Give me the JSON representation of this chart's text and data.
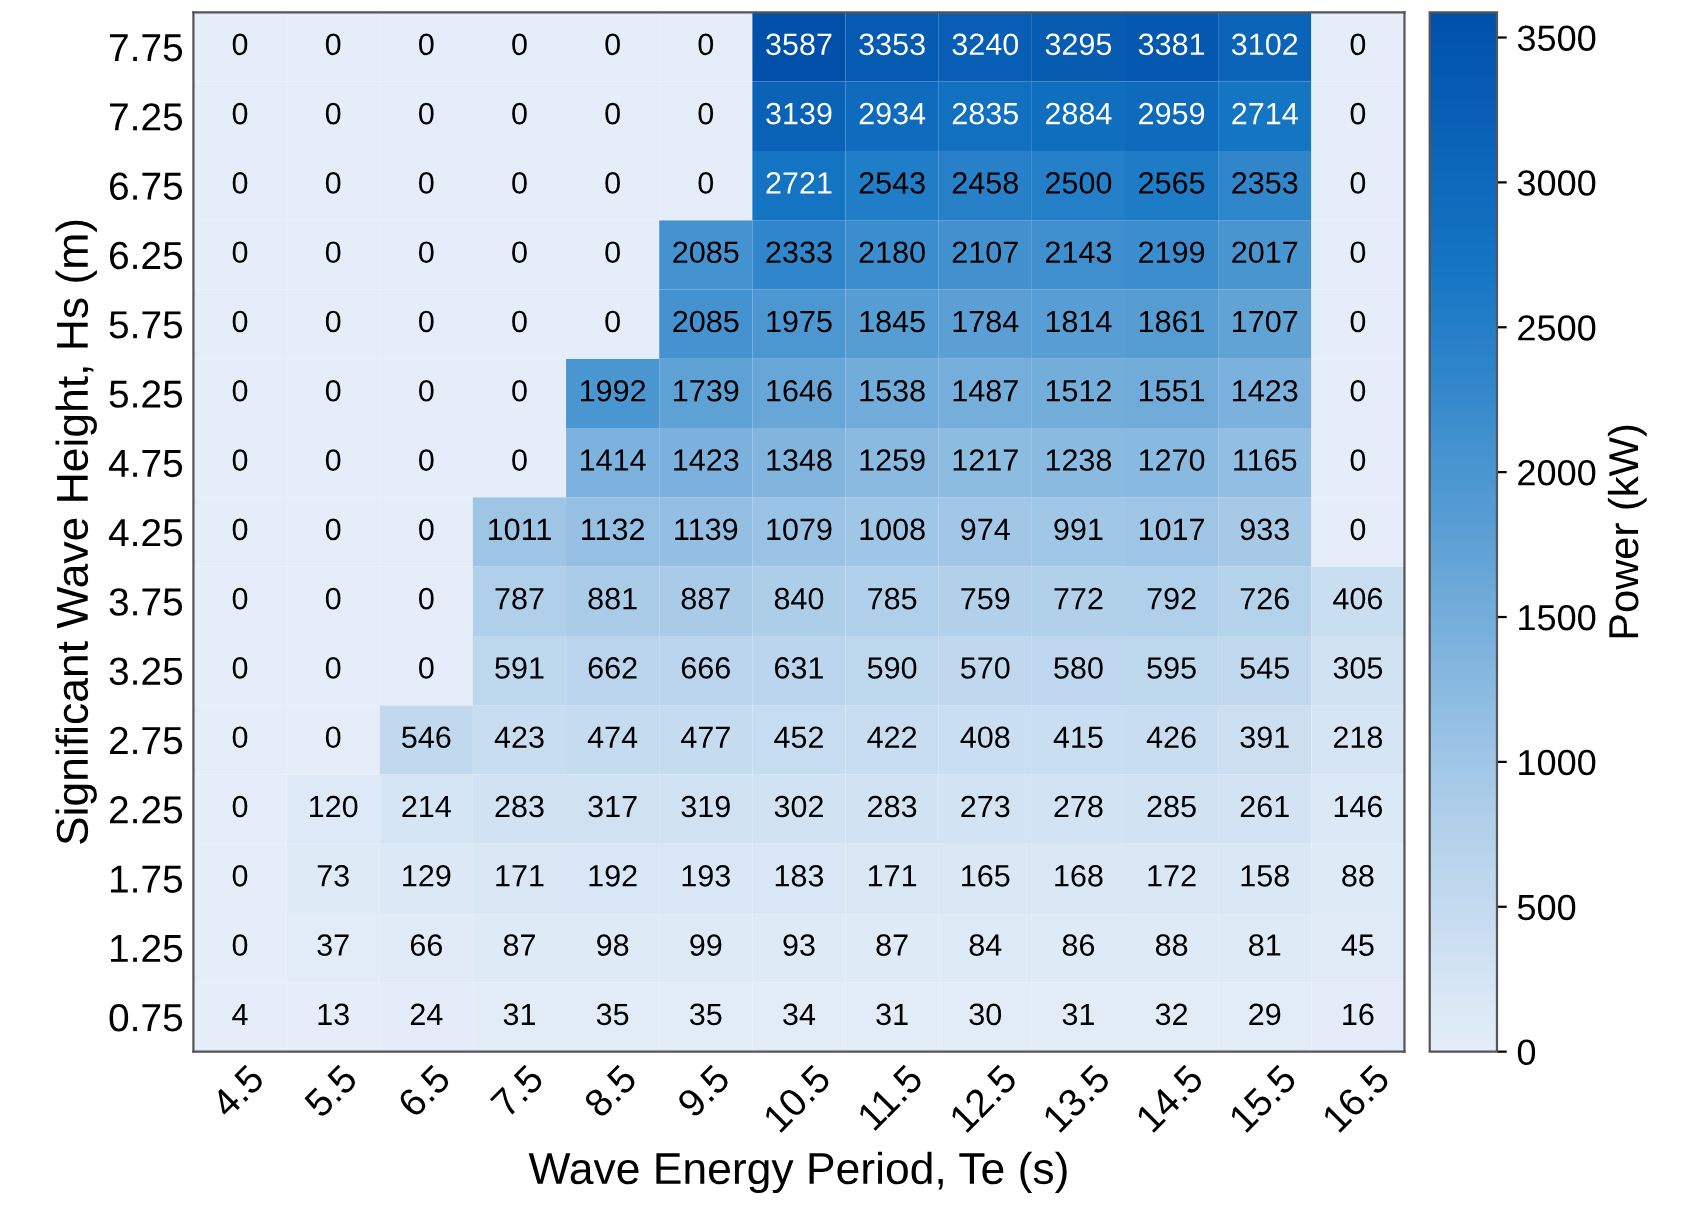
{
  "chart_data": {
    "type": "heatmap",
    "xlabel": "Wave Energy Period, Te (s)",
    "ylabel": "Significant Wave Height, Hs (m)",
    "clabel": "Power (kW)",
    "categories": [
      "4.5",
      "5.5",
      "6.5",
      "7.5",
      "8.5",
      "9.5",
      "10.5",
      "11.5",
      "12.5",
      "13.5",
      "14.5",
      "15.5",
      "16.5"
    ],
    "y_categories": [
      "7.75",
      "7.25",
      "6.75",
      "6.25",
      "5.75",
      "5.25",
      "4.75",
      "4.25",
      "3.75",
      "3.25",
      "2.75",
      "2.25",
      "1.75",
      "1.25",
      "0.75"
    ],
    "cells": [
      [
        0,
        0,
        0,
        0,
        0,
        0,
        3587,
        3353,
        3240,
        3295,
        3381,
        3102,
        0
      ],
      [
        0,
        0,
        0,
        0,
        0,
        0,
        3139,
        2934,
        2835,
        2884,
        2959,
        2714,
        0
      ],
      [
        0,
        0,
        0,
        0,
        0,
        0,
        2721,
        2543,
        2458,
        2500,
        2565,
        2353,
        0
      ],
      [
        0,
        0,
        0,
        0,
        0,
        2085,
        2333,
        2180,
        2107,
        2143,
        2199,
        2017,
        0
      ],
      [
        0,
        0,
        0,
        0,
        0,
        2085,
        1975,
        1845,
        1784,
        1814,
        1861,
        1707,
        0
      ],
      [
        0,
        0,
        0,
        0,
        1992,
        1739,
        1646,
        1538,
        1487,
        1512,
        1551,
        1423,
        0
      ],
      [
        0,
        0,
        0,
        0,
        1414,
        1423,
        1348,
        1259,
        1217,
        1238,
        1270,
        1165,
        0
      ],
      [
        0,
        0,
        0,
        1011,
        1132,
        1139,
        1079,
        1008,
        974,
        991,
        1017,
        933,
        0
      ],
      [
        0,
        0,
        0,
        787,
        881,
        887,
        840,
        785,
        759,
        772,
        792,
        726,
        406
      ],
      [
        0,
        0,
        0,
        591,
        662,
        666,
        631,
        590,
        570,
        580,
        595,
        545,
        305
      ],
      [
        0,
        0,
        546,
        423,
        474,
        477,
        452,
        422,
        408,
        415,
        426,
        391,
        218
      ],
      [
        0,
        120,
        214,
        283,
        317,
        319,
        302,
        283,
        273,
        278,
        285,
        261,
        146
      ],
      [
        0,
        73,
        129,
        171,
        192,
        193,
        183,
        171,
        165,
        168,
        172,
        158,
        88
      ],
      [
        0,
        37,
        66,
        87,
        98,
        99,
        93,
        87,
        84,
        86,
        88,
        81,
        45
      ],
      [
        4,
        13,
        24,
        31,
        35,
        35,
        34,
        31,
        30,
        31,
        32,
        29,
        16
      ]
    ],
    "clim": [
      0,
      3587
    ],
    "cticks": [
      0,
      500,
      1000,
      1500,
      2000,
      2500,
      3000,
      3500
    ],
    "data_labels": true
  }
}
